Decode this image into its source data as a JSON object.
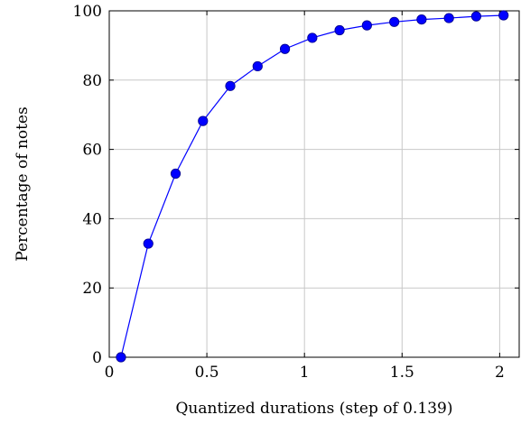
{
  "chart_data": {
    "type": "line",
    "title": "",
    "xlabel": "Quantized durations (step of 0.139)",
    "ylabel": "Percentage of notes",
    "xlim": [
      0,
      2.1
    ],
    "ylim": [
      0,
      100
    ],
    "xticks": [
      0,
      0.5,
      1,
      1.5,
      2
    ],
    "yticks": [
      0,
      20,
      40,
      60,
      80,
      100
    ],
    "xtick_labels": [
      "0",
      "0.5",
      "1",
      "1.5",
      "2"
    ],
    "ytick_labels": [
      "0",
      "20",
      "40",
      "60",
      "80",
      "100"
    ],
    "grid": true,
    "series": [
      {
        "color": "#0000ff",
        "marker": "circle",
        "x": [
          0.06,
          0.2,
          0.34,
          0.48,
          0.62,
          0.76,
          0.9,
          1.04,
          1.18,
          1.32,
          1.46,
          1.6,
          1.74,
          1.88,
          2.02
        ],
        "y": [
          0,
          32.8,
          53,
          68.2,
          78.3,
          84,
          89,
          92.2,
          94.4,
          95.8,
          96.8,
          97.5,
          97.9,
          98.4,
          98.7
        ]
      }
    ]
  }
}
